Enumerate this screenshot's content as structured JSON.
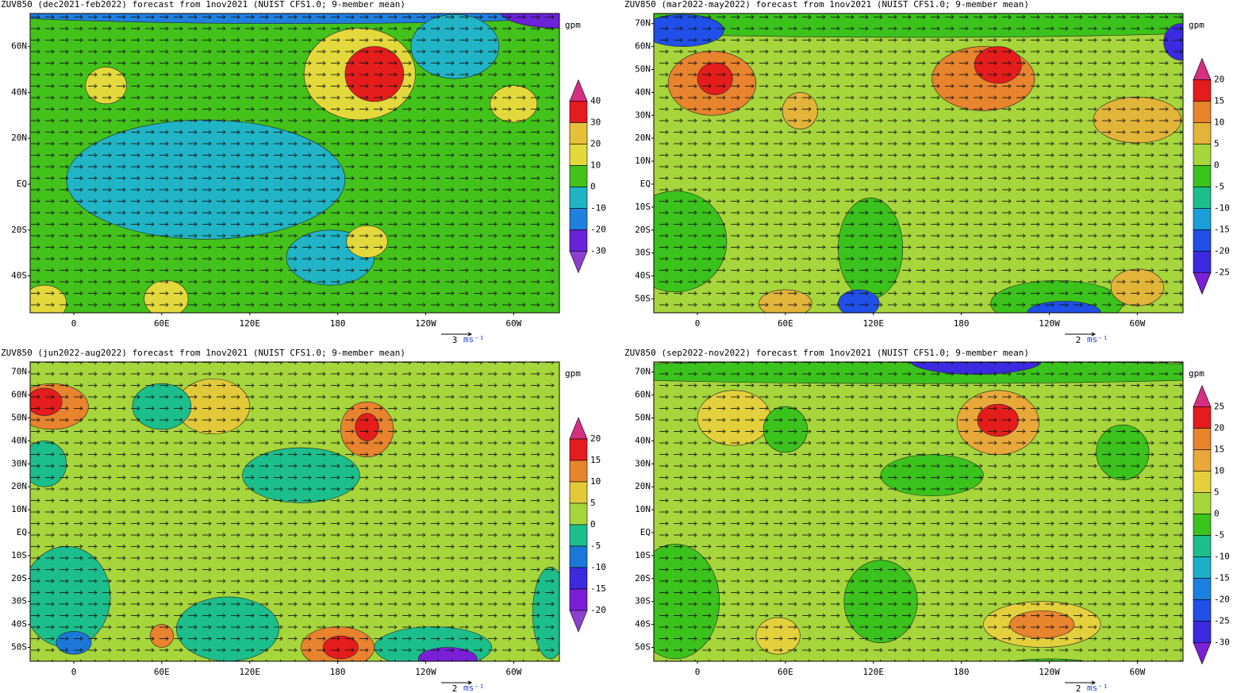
{
  "panels": [
    {
      "title": "ZUV850 (dec2021-feb2022) forecast from 1nov2021 (NUIST CFS1.0; 9-member mean)",
      "lat_labels": [
        "60N",
        "40N",
        "20N",
        "EQ",
        "20S",
        "40S"
      ],
      "lon_labels": [
        "0",
        "60E",
        "120E",
        "180",
        "120W",
        "60W"
      ],
      "unit": "gpm",
      "colorbar": {
        "levels": [
          40,
          30,
          20,
          10,
          0,
          -10,
          -20,
          -30
        ],
        "colors": [
          "#d42f80",
          "#e51c1c",
          "#e7c03a",
          "#e3d83c",
          "#44c21c",
          "#20b4c6",
          "#2080e0",
          "#6a22d8",
          "#8b3fd1"
        ]
      },
      "vector_ref": {
        "value": 3,
        "unit": "ms⁻¹"
      }
    },
    {
      "title": "ZUV850 (mar2022-may2022) forecast from 1nov2021 (NUIST CFS1.0; 9-member mean)",
      "lat_labels": [
        "70N",
        "60N",
        "50N",
        "40N",
        "30N",
        "20N",
        "10N",
        "EQ",
        "10S",
        "20S",
        "30S",
        "40S",
        "50S"
      ],
      "lon_labels": [
        "0",
        "60E",
        "120E",
        "180",
        "120W",
        "60W"
      ],
      "unit": "gpm",
      "colorbar": {
        "levels": [
          20,
          15,
          10,
          5,
          0,
          -5,
          -10,
          -15,
          -20,
          -25
        ],
        "colors": [
          "#d42f80",
          "#e51c1c",
          "#e8832e",
          "#e3b43a",
          "#a6d63c",
          "#3cc21c",
          "#1cbf8c",
          "#1c9fd8",
          "#2050e8",
          "#3c2ae0",
          "#7a1fd6"
        ]
      },
      "vector_ref": {
        "value": 2,
        "unit": "ms⁻¹"
      }
    },
    {
      "title": "ZUV850 (jun2022-aug2022) forecast from 1nov2021 (NUIST CFS1.0; 9-member mean)",
      "lat_labels": [
        "70N",
        "60N",
        "50N",
        "40N",
        "30N",
        "20N",
        "10N",
        "EQ",
        "10S",
        "20S",
        "30S",
        "40S",
        "50S"
      ],
      "lon_labels": [
        "0",
        "60E",
        "120E",
        "180",
        "120W",
        "60W"
      ],
      "unit": "gpm",
      "colorbar": {
        "levels": [
          20,
          15,
          10,
          5,
          0,
          -5,
          -10,
          -15,
          -20
        ],
        "colors": [
          "#d42f80",
          "#e51c1c",
          "#e8832e",
          "#e3c83a",
          "#a6d63c",
          "#1cbf8c",
          "#1c78d8",
          "#3c2ae0",
          "#7a1fd6",
          "#8b3fd1"
        ]
      },
      "vector_ref": {
        "value": 2,
        "unit": "ms⁻¹"
      }
    },
    {
      "title": "ZUV850 (sep2022-nov2022) forecast from 1nov2021 (NUIST CFS1.0; 9-member mean)",
      "lat_labels": [
        "70N",
        "60N",
        "50N",
        "40N",
        "30N",
        "20N",
        "10N",
        "EQ",
        "10S",
        "20S",
        "30S",
        "40S",
        "50S"
      ],
      "lon_labels": [
        "0",
        "60E",
        "120E",
        "180",
        "120W",
        "60W"
      ],
      "unit": "gpm",
      "colorbar": {
        "levels": [
          25,
          20,
          15,
          10,
          5,
          0,
          -5,
          -10,
          -15,
          -20,
          -25,
          -30
        ],
        "colors": [
          "#d42f80",
          "#e51c1c",
          "#e8832e",
          "#e8a83a",
          "#e3d03c",
          "#a6d63c",
          "#3cc21c",
          "#1cbf8c",
          "#1cb0c8",
          "#1c80e0",
          "#2050e8",
          "#3c2ae0",
          "#7a1fd6"
        ]
      },
      "vector_ref": {
        "value": 2,
        "unit": "ms⁻¹"
      }
    }
  ]
}
